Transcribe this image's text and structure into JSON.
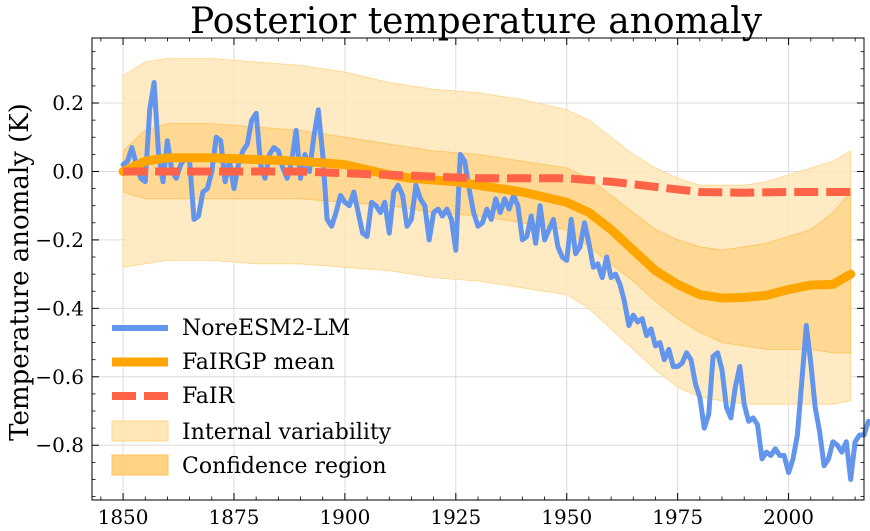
{
  "chart_data": {
    "type": "line",
    "title": "Posterior temperature anomaly",
    "xlabel": "",
    "ylabel": "Temperature anomaly (K)",
    "xlim": [
      1843,
      2017
    ],
    "ylim": [
      -0.96,
      0.39
    ],
    "x_ticks": [
      1850,
      1875,
      1900,
      1925,
      1950,
      1975,
      2000
    ],
    "y_ticks": [
      0.2,
      0.0,
      -0.2,
      -0.4,
      -0.6,
      -0.8
    ],
    "y_tick_labels": [
      "0.2",
      "0.0",
      "−0.2",
      "−0.4",
      "−0.6",
      "−0.8"
    ],
    "grid": true,
    "legend_position": "lower-left",
    "legend": [
      "NoreESM2-LM",
      "FaIRGP mean",
      "FaIR",
      "Internal variability",
      "Confidence region"
    ],
    "colors": {
      "noresm": "#6495ED",
      "fairgp": "#FFA500",
      "fair": "#FF6347",
      "internal_band": "#FFE7B8",
      "confidence_band": "#FFD284"
    },
    "series": [
      {
        "name": "NoreESM2-LM",
        "x_start": 1850,
        "values": [
          0.02,
          0.03,
          0.07,
          0.02,
          -0.02,
          -0.03,
          0.18,
          0.26,
          0.05,
          -0.03,
          0.09,
          0.0,
          -0.02,
          0.02,
          0.04,
          0.03,
          -0.14,
          -0.13,
          -0.06,
          -0.05,
          0.0,
          0.1,
          0.09,
          -0.03,
          0.03,
          -0.05,
          0.02,
          0.06,
          0.08,
          0.15,
          0.17,
          0.02,
          -0.02,
          0.05,
          0.07,
          0.06,
          0.01,
          -0.02,
          0.03,
          0.12,
          -0.02,
          0.05,
          0.0,
          0.1,
          0.18,
          0.05,
          -0.14,
          -0.16,
          -0.12,
          -0.07,
          -0.09,
          -0.1,
          -0.06,
          -0.12,
          -0.18,
          -0.19,
          -0.09,
          -0.1,
          -0.12,
          -0.09,
          -0.18,
          -0.06,
          -0.04,
          -0.07,
          -0.16,
          -0.14,
          -0.04,
          -0.08,
          -0.1,
          -0.2,
          -0.12,
          -0.11,
          -0.13,
          -0.11,
          -0.14,
          -0.23,
          0.05,
          0.03,
          -0.05,
          -0.12,
          -0.16,
          -0.15,
          -0.11,
          -0.14,
          -0.08,
          -0.12,
          -0.08,
          -0.11,
          -0.07,
          -0.1,
          -0.2,
          -0.19,
          -0.13,
          -0.21,
          -0.1,
          -0.2,
          -0.17,
          -0.14,
          -0.22,
          -0.25,
          -0.26,
          -0.14,
          -0.24,
          -0.22,
          -0.15,
          -0.21,
          -0.28,
          -0.27,
          -0.31,
          -0.25,
          -0.31,
          -0.3,
          -0.33,
          -0.38,
          -0.45,
          -0.42,
          -0.44,
          -0.43,
          -0.48,
          -0.46,
          -0.51,
          -0.5,
          -0.55,
          -0.52,
          -0.57,
          -0.57,
          -0.56,
          -0.53,
          -0.55,
          -0.62,
          -0.66,
          -0.75,
          -0.71,
          -0.54,
          -0.53,
          -0.58,
          -0.69,
          -0.72,
          -0.63,
          -0.57,
          -0.68,
          -0.73,
          -0.72,
          -0.74,
          -0.84,
          -0.82,
          -0.83,
          -0.81,
          -0.83,
          -0.83,
          -0.88,
          -0.84,
          -0.77,
          -0.61,
          -0.45,
          -0.56,
          -0.69,
          -0.76,
          -0.86,
          -0.84,
          -0.79,
          -0.8,
          -0.82,
          -0.79,
          -0.9,
          -0.79,
          -0.77,
          -0.77,
          -0.73
        ]
      },
      {
        "name": "FaIRGP mean",
        "x": [
          1850,
          1855,
          1860,
          1870,
          1880,
          1890,
          1895,
          1900,
          1905,
          1910,
          1915,
          1920,
          1925,
          1930,
          1935,
          1940,
          1945,
          1950,
          1955,
          1960,
          1965,
          1970,
          1975,
          1980,
          1985,
          1990,
          1995,
          2000,
          2005,
          2010,
          2014
        ],
        "values": [
          0.0,
          0.03,
          0.04,
          0.04,
          0.035,
          0.03,
          0.025,
          0.02,
          0.005,
          -0.01,
          -0.02,
          -0.025,
          -0.03,
          -0.04,
          -0.05,
          -0.06,
          -0.075,
          -0.09,
          -0.12,
          -0.17,
          -0.23,
          -0.29,
          -0.33,
          -0.36,
          -0.37,
          -0.368,
          -0.362,
          -0.345,
          -0.332,
          -0.33,
          -0.3
        ]
      },
      {
        "name": "FaIR",
        "x": [
          1850,
          1870,
          1890,
          1900,
          1910,
          1920,
          1930,
          1940,
          1950,
          1960,
          1970,
          1980,
          1990,
          2000,
          2010,
          2014
        ],
        "values": [
          0.0,
          0.0,
          0.0,
          -0.005,
          -0.01,
          -0.015,
          -0.02,
          -0.02,
          -0.02,
          -0.03,
          -0.045,
          -0.06,
          -0.062,
          -0.06,
          -0.06,
          -0.06
        ]
      },
      {
        "name": "Internal variability",
        "x": [
          1850,
          1855,
          1860,
          1870,
          1880,
          1890,
          1900,
          1910,
          1920,
          1930,
          1940,
          1950,
          1955,
          1960,
          1965,
          1970,
          1975,
          1980,
          1985,
          1990,
          1995,
          2000,
          2005,
          2010,
          2014
        ],
        "upper": [
          0.28,
          0.32,
          0.33,
          0.33,
          0.32,
          0.31,
          0.29,
          0.26,
          0.24,
          0.23,
          0.21,
          0.18,
          0.15,
          0.1,
          0.05,
          0.01,
          -0.02,
          -0.04,
          -0.04,
          -0.04,
          -0.03,
          -0.01,
          0.01,
          0.03,
          0.06
        ],
        "lower": [
          -0.28,
          -0.27,
          -0.26,
          -0.26,
          -0.27,
          -0.27,
          -0.28,
          -0.29,
          -0.31,
          -0.32,
          -0.34,
          -0.36,
          -0.4,
          -0.46,
          -0.52,
          -0.58,
          -0.63,
          -0.66,
          -0.67,
          -0.68,
          -0.68,
          -0.68,
          -0.68,
          -0.68,
          -0.67
        ]
      },
      {
        "name": "Confidence region",
        "x": [
          1850,
          1855,
          1860,
          1870,
          1880,
          1890,
          1900,
          1910,
          1920,
          1930,
          1940,
          1950,
          1955,
          1960,
          1965,
          1970,
          1975,
          1980,
          1985,
          1990,
          1995,
          2000,
          2005,
          2010,
          2014
        ],
        "upper": [
          0.06,
          0.12,
          0.14,
          0.14,
          0.13,
          0.12,
          0.1,
          0.08,
          0.06,
          0.05,
          0.03,
          0.01,
          -0.02,
          -0.07,
          -0.12,
          -0.17,
          -0.2,
          -0.22,
          -0.23,
          -0.22,
          -0.21,
          -0.19,
          -0.17,
          -0.12,
          -0.06
        ],
        "lower": [
          -0.06,
          -0.08,
          -0.08,
          -0.08,
          -0.08,
          -0.08,
          -0.09,
          -0.1,
          -0.12,
          -0.13,
          -0.15,
          -0.17,
          -0.22,
          -0.27,
          -0.32,
          -0.38,
          -0.43,
          -0.47,
          -0.5,
          -0.51,
          -0.52,
          -0.52,
          -0.52,
          -0.53,
          -0.53
        ]
      }
    ]
  }
}
